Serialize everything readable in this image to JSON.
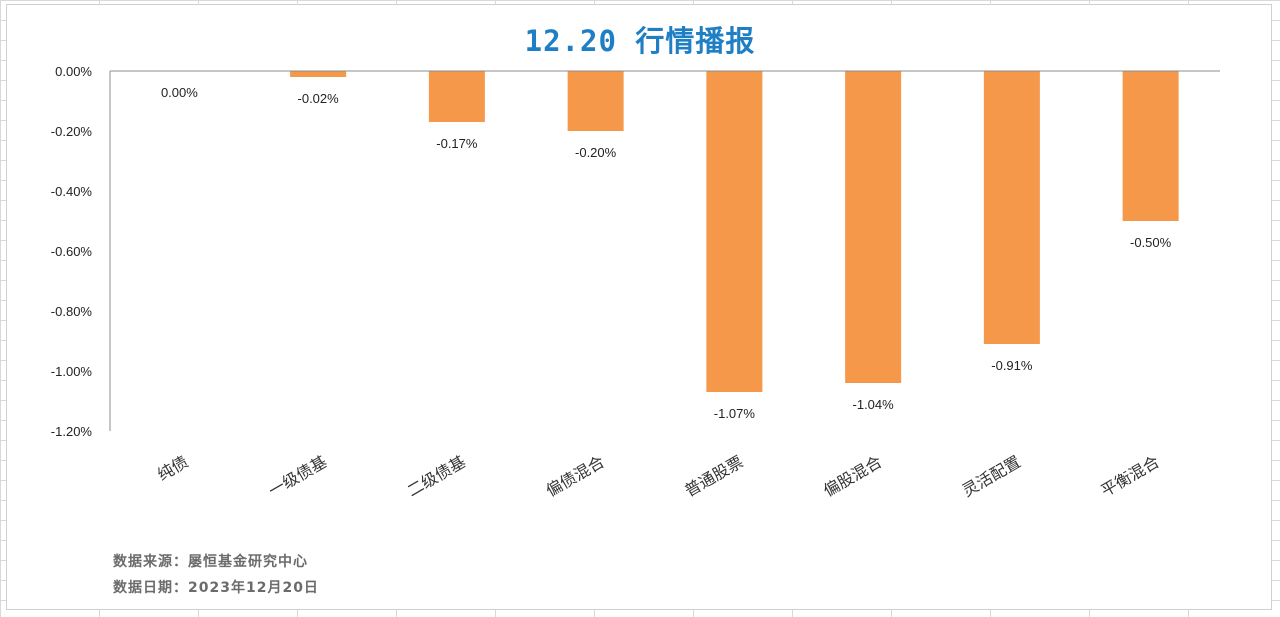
{
  "title": "12.20 行情播报",
  "chart_data": {
    "type": "bar",
    "categories": [
      "纯债",
      "一级债基",
      "二级债基",
      "偏债混合",
      "普通股票",
      "偏股混合",
      "灵活配置",
      "平衡混合"
    ],
    "values": [
      0.0,
      -0.02,
      -0.17,
      -0.2,
      -1.07,
      -1.04,
      -0.91,
      -0.5
    ],
    "value_labels": [
      "0.00%",
      "-0.02%",
      "-0.17%",
      "-0.20%",
      "-1.07%",
      "-1.04%",
      "-0.91%",
      "-0.50%"
    ],
    "y_ticks": [
      "0.00%",
      "-0.20%",
      "-0.40%",
      "-0.60%",
      "-0.80%",
      "-1.00%",
      "-1.20%"
    ],
    "ylim": [
      -1.2,
      0
    ],
    "unit": "%",
    "bar_color": "#F5984A",
    "grid": false
  },
  "footnotes": {
    "source": "数据来源：屡恒基金研究中心",
    "date": "数据日期：2023年12月20日"
  },
  "colors": {
    "title": "#1f7fc4",
    "bar": "#F5984A",
    "axis": "#8c8c8c"
  }
}
